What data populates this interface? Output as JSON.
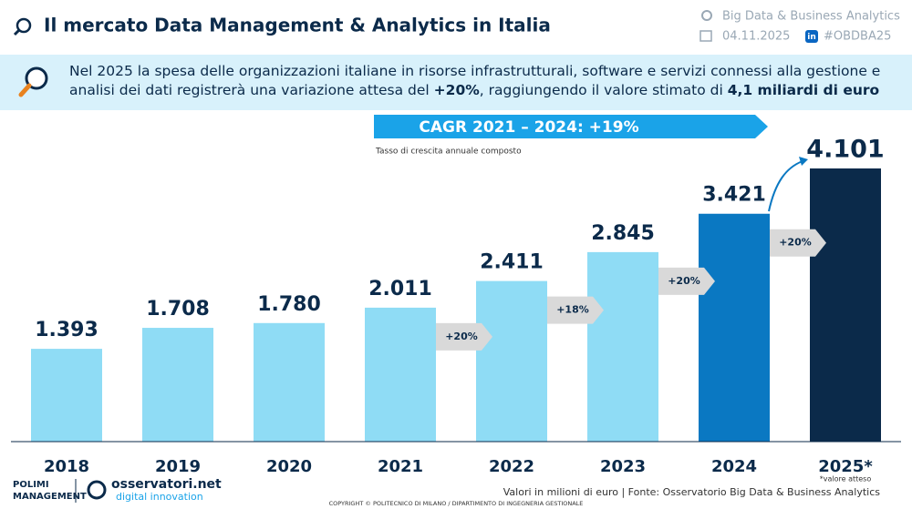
{
  "header": {
    "title": "Il mercato Data Management & Analytics in Italia",
    "observatory": "Big Data & Business Analytics",
    "date": "04.11.2025",
    "hashtag": "#OBDBA25"
  },
  "banner": {
    "text_parts": [
      {
        "text": "Nel 2025 la spesa delle organizzazioni italiane in risorse infrastrutturali, software e servizi connessi alla gestione e analisi dei dati registrerà una variazione attesa del ",
        "bold": false
      },
      {
        "text": "+20%",
        "bold": true
      },
      {
        "text": ", raggiungendo il valore stimato di ",
        "bold": false
      },
      {
        "text": "4,1 miliardi di euro",
        "bold": true
      }
    ]
  },
  "chart_data": {
    "type": "bar",
    "cagr_label": "CAGR 2021 – 2024: +19%",
    "cagr_note": "Tasso di crescita annuale composto",
    "categories": [
      "2018",
      "2019",
      "2020",
      "2021",
      "2022",
      "2023",
      "2024",
      "2025*"
    ],
    "values": [
      1393,
      1708,
      1780,
      2011,
      2411,
      2845,
      3421,
      4101
    ],
    "value_labels": [
      "1.393",
      "1.708",
      "1.780",
      "2.011",
      "2.411",
      "2.845",
      "3.421",
      "4.101"
    ],
    "colors": [
      "#8fdcf5",
      "#8fdcf5",
      "#8fdcf5",
      "#8fdcf5",
      "#8fdcf5",
      "#8fdcf5",
      "#0a78c2",
      "#0b2a4a"
    ],
    "growth_labels": [
      "+20%",
      "+18%",
      "+20%",
      "+20%"
    ],
    "footnote": "*valore atteso"
  },
  "footer": {
    "logo_1_line_1": "POLIMI",
    "logo_1_line_2": "MANAGEMENT",
    "logo_2_line_1": "osservatori.net",
    "logo_2_line_2": "digital innovation",
    "source": "Valori in milioni di euro | Fonte: Osservatorio Big Data & Business Analytics",
    "copyright": "COPYRIGHT © POLITECNICO DI MILANO / DIPARTIMENTO DI INGEGNERIA GESTIONALE"
  }
}
